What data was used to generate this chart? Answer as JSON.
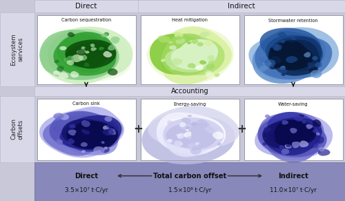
{
  "bg_color": "#ffffff",
  "outer_bg": "#c8c8d8",
  "panel_bg": "#e0e0ec",
  "map_bg": "#ffffff",
  "bottom_bg": "#8888bb",
  "row1_label": "Ecosystem\nservices",
  "row2_label": "Carbon\noffsets",
  "col_header_direct": "Direct",
  "col_header_indirect": "Indirect",
  "accounting_label": "Accounting",
  "map_titles_row1": [
    "Carbon sequestration",
    "Heat mitigation",
    "Stormwater retention"
  ],
  "map_titles_row2": [
    "Carbon sink",
    "Energy-saving",
    "Water-saving"
  ],
  "bottom_labels": [
    "Direct",
    "Total carbon offset",
    "Indirect"
  ],
  "bottom_values": [
    "3.5×10⁷ t·C/yr",
    "1.5×10⁸ t·C/yr",
    "11.0×10⁷ t·C/yr"
  ],
  "map_colors_row1": [
    [
      "#0a4a0a",
      "#1a7a1a",
      "#2e9e2e",
      "#55bb55",
      "#88cc88",
      "#aaddaa",
      "#cceebb",
      "#f0f8e8"
    ],
    [
      "#ddf5cc",
      "#c0e89a",
      "#a0d860",
      "#80c830",
      "#b0e070",
      "#d8f0a0",
      "#eef8d0",
      "#f8fff0"
    ],
    [
      "#051530",
      "#0a2550",
      "#103570",
      "#1a4888",
      "#2558a0",
      "#4070b8",
      "#6090cc",
      "#90b5e0"
    ]
  ],
  "map_colors_row2": [
    [
      "#08084a",
      "#12126a",
      "#20208a",
      "#3535aa",
      "#5555bb",
      "#7070cc",
      "#9090dd",
      "#b0b0ee"
    ],
    [
      "#c0c0e8",
      "#d0d0f0",
      "#e0e0f8",
      "#ebebff",
      "#f5f5ff",
      "#ffffff",
      "#d8d8f0",
      "#b8b8e0"
    ],
    [
      "#08084a",
      "#12126a",
      "#20208a",
      "#3535aa",
      "#5555bb",
      "#7070cc",
      "#9090dd",
      "#b0b0ee"
    ]
  ]
}
